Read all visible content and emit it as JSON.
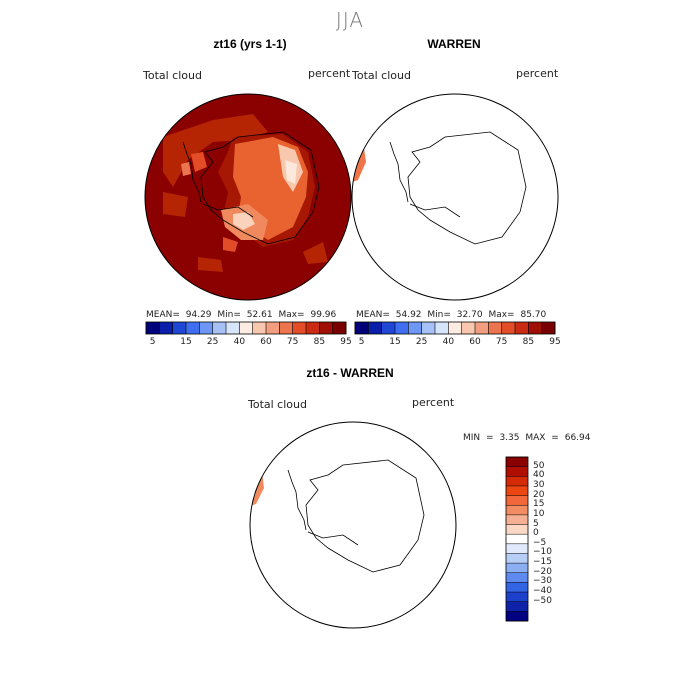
{
  "suptitle": "JJA",
  "panels": [
    {
      "title": "zt16 (yrs 1-1)",
      "field_label": "Total cloud",
      "units_label": "percent",
      "stats": {
        "mean_label": "MEAN=",
        "mean": "94.29",
        "min_label": "Min=",
        "min": "52.61",
        "max_label": "Max=",
        "max": "99.96"
      },
      "description_fill": "#8b0000"
    },
    {
      "title": "WARREN",
      "field_label": "Total cloud",
      "units_label": "percent",
      "stats": {
        "mean_label": "MEAN=",
        "mean": "54.92",
        "min_label": "Min=",
        "min": "32.70",
        "max_label": "Max=",
        "max": "85.70"
      },
      "description_fill": "#ffffff"
    },
    {
      "title": "zt16 - WARREN",
      "field_label": "Total cloud",
      "units_label": "percent",
      "stats": {
        "min_label": "MIN =",
        "min": "3.35",
        "max_label": "MAX =",
        "max": "66.94"
      }
    }
  ],
  "abs_colorbar": {
    "tick_labels": [
      "5",
      "15",
      "25",
      "40",
      "60",
      "75",
      "85",
      "95"
    ],
    "colors": [
      "#00007a",
      "#0a1fa8",
      "#1f47d6",
      "#3f6ff0",
      "#6d97f5",
      "#a6c1f7",
      "#d7e5fb",
      "#fdece2",
      "#f8c7ae",
      "#f39e7f",
      "#ec7550",
      "#e24d27",
      "#c92b13",
      "#a00f04",
      "#780000"
    ]
  },
  "diff_colorbar": {
    "tick_labels": [
      "50",
      "40",
      "30",
      "20",
      "15",
      "10",
      "5",
      "0",
      "−5",
      "−10",
      "−15",
      "−20",
      "−30",
      "−40",
      "−50"
    ],
    "colors": [
      "#8b0000",
      "#b00f00",
      "#d42a06",
      "#ec4612",
      "#f2683a",
      "#f28c63",
      "#f5b093",
      "#fbd8c5",
      "#ffffff",
      "#dfe9fb",
      "#b6cdf6",
      "#8caff3",
      "#5f8bf0",
      "#3364e4",
      "#1c3fcc",
      "#0e22a8",
      "#000080"
    ]
  }
}
